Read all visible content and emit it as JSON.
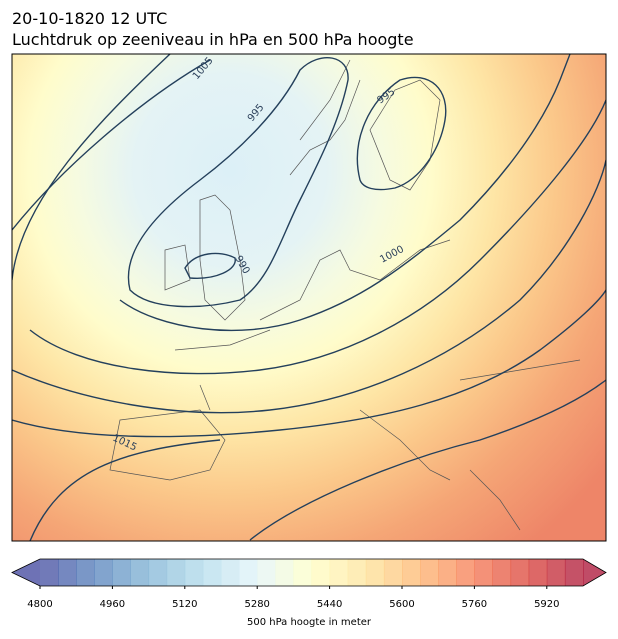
{
  "title": "20-10-1820 12 UTC",
  "subtitle": "Luchtdruk op zeeniveau in hPa en 500 hPa hoogte",
  "map": {
    "contour_labels": [
      1005,
      995,
      995,
      990,
      1000,
      1015
    ]
  },
  "colorbar": {
    "label": "500 hPa hoogte in meter",
    "range": [
      4800,
      6000
    ],
    "step": 40,
    "ticks": [
      4800,
      4960,
      5120,
      5280,
      5440,
      5600,
      5760,
      5920
    ],
    "colormap": [
      "#313695",
      "#4575b4",
      "#74add1",
      "#abd9e9",
      "#e0f3f8",
      "#ffffbf",
      "#fee090",
      "#fdae61",
      "#f46d43",
      "#d73027",
      "#a50026"
    ],
    "opacity": 0.7
  }
}
